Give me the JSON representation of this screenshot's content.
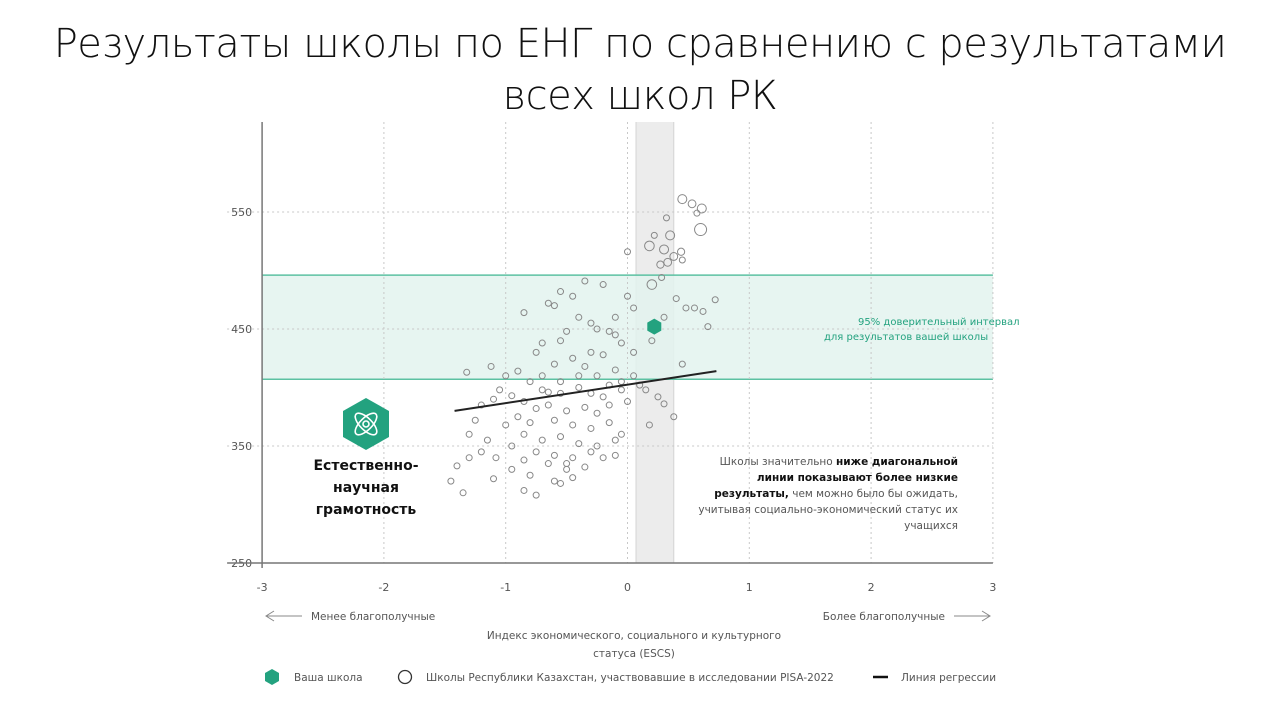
{
  "title_line1": "Результаты школы по ЕНГ по сравнению с результатами",
  "title_line2": "всех школ РК",
  "chart_data": {
    "type": "scatter",
    "xlabel": "Индекс экономического, социального и культурного статуса (ESCS)",
    "xlabel_line1": "Индекс экономического, социального и культурного",
    "xlabel_line2": "статуса (ESCS)",
    "ylabel": "",
    "xlim": [
      -3,
      3
    ],
    "ylim": [
      250,
      625
    ],
    "xticks": [
      "-3",
      "-2",
      "-1",
      "0",
      "1",
      "2",
      "3"
    ],
    "yticks": [
      "250",
      "350",
      "450",
      "550"
    ],
    "grid": true,
    "left_arrow_label": "Менее благополучные",
    "right_arrow_label": "Более благополучные",
    "confidence_band": {
      "low": 407,
      "high": 496,
      "label_line1": "95% доверительный интервал",
      "label_line2": "для результатов вашей школы"
    },
    "school_escs_band": [
      0.07,
      0.38
    ],
    "your_school": {
      "x": 0.22,
      "y": 452
    },
    "regression": {
      "x": [
        -1.42,
        0.73
      ],
      "y": [
        380,
        414
      ]
    },
    "subject_line1": "Естественно-",
    "subject_line2": "научная",
    "subject_line3": "грамотность",
    "note": {
      "l1a": "Школы значительно ",
      "l1b": "ниже диагональной",
      "l2": "линии показывают более низкие",
      "l3a": "результаты,",
      "l3b": " чем можно было бы ожидать,",
      "l4": "учитывая социально-экономический статус их",
      "l5": "учащихся"
    },
    "legend": {
      "your_school": "Ваша школа",
      "schools": "Школы Республики Казахстан, участвовавшие в исследовании PISA-2022",
      "regression": "Линия регрессии"
    },
    "colors": {
      "accent": "#23a27f",
      "band": "#e3f3ee",
      "grey_band": "#ececec"
    },
    "points": [
      [
        0.45,
        561,
        1.5
      ],
      [
        0.53,
        557,
        1.3
      ],
      [
        0.61,
        553,
        1.5
      ],
      [
        0.57,
        549,
        1
      ],
      [
        0.6,
        535,
        2
      ],
      [
        0.32,
        545,
        1
      ],
      [
        0.22,
        530,
        1
      ],
      [
        0.35,
        530,
        1.5
      ],
      [
        0.18,
        521,
        1.6
      ],
      [
        0.3,
        518,
        1.5
      ],
      [
        0.27,
        505,
        1.2
      ],
      [
        0.38,
        512,
        1.3
      ],
      [
        0.44,
        516,
        1.2
      ],
      [
        0.33,
        507,
        1.3
      ],
      [
        0.45,
        509,
        1
      ],
      [
        0.2,
        488,
        1.6
      ],
      [
        0.28,
        494,
        1
      ],
      [
        0.0,
        516,
        1
      ],
      [
        0.4,
        476,
        1
      ],
      [
        0.48,
        468,
        1
      ],
      [
        0.62,
        465,
        1
      ],
      [
        0.72,
        475,
        1
      ],
      [
        0.55,
        468,
        1
      ],
      [
        0.66,
        452,
        1
      ],
      [
        0.3,
        460,
        1
      ],
      [
        0.2,
        440,
        1
      ],
      [
        0.45,
        420,
        1
      ],
      [
        0.38,
        375,
        1
      ],
      [
        0.18,
        368,
        1
      ],
      [
        0.05,
        430,
        1
      ],
      [
        -0.05,
        438,
        1
      ],
      [
        -0.1,
        445,
        1
      ],
      [
        -0.35,
        491,
        1
      ],
      [
        -0.45,
        478,
        1
      ],
      [
        -0.55,
        482,
        1
      ],
      [
        -0.2,
        488,
        1
      ],
      [
        -0.6,
        470,
        1
      ],
      [
        -0.65,
        472,
        1
      ],
      [
        -0.85,
        464,
        1
      ],
      [
        -0.4,
        460,
        1
      ],
      [
        -0.3,
        455,
        1
      ],
      [
        -0.25,
        450,
        1
      ],
      [
        -0.5,
        448,
        1
      ],
      [
        -0.55,
        440,
        1
      ],
      [
        -0.7,
        438,
        1
      ],
      [
        -0.75,
        430,
        1
      ],
      [
        -0.1,
        460,
        1
      ],
      [
        -0.15,
        448,
        1
      ],
      [
        0.0,
        478,
        1
      ],
      [
        0.05,
        468,
        1
      ],
      [
        -0.6,
        420,
        1
      ],
      [
        -0.45,
        425,
        1
      ],
      [
        -0.3,
        430,
        1
      ],
      [
        -0.2,
        428,
        1
      ],
      [
        -0.1,
        415,
        1
      ],
      [
        0.05,
        410,
        1
      ],
      [
        -0.05,
        405,
        1
      ],
      [
        -0.9,
        414,
        1
      ],
      [
        -1.0,
        410,
        1
      ],
      [
        -1.12,
        418,
        1
      ],
      [
        -1.32,
        413,
        1
      ],
      [
        -0.8,
        405,
        1
      ],
      [
        -0.7,
        398,
        1
      ],
      [
        -0.55,
        395,
        1
      ],
      [
        -0.4,
        400,
        1
      ],
      [
        -0.3,
        395,
        1
      ],
      [
        -0.2,
        392,
        1
      ],
      [
        -0.05,
        398,
        1
      ],
      [
        0.1,
        402,
        1
      ],
      [
        -1.05,
        398,
        1
      ],
      [
        -0.95,
        393,
        1
      ],
      [
        -0.85,
        388,
        1
      ],
      [
        -0.75,
        382,
        1
      ],
      [
        -0.65,
        385,
        1
      ],
      [
        -0.5,
        380,
        1
      ],
      [
        -0.35,
        383,
        1
      ],
      [
        -0.25,
        378,
        1
      ],
      [
        -0.15,
        385,
        1
      ],
      [
        0.0,
        388,
        1
      ],
      [
        -1.2,
        385,
        1
      ],
      [
        -1.1,
        390,
        1
      ],
      [
        -0.9,
        375,
        1
      ],
      [
        -0.8,
        370,
        1
      ],
      [
        -0.6,
        372,
        1
      ],
      [
        -0.45,
        368,
        1
      ],
      [
        -0.3,
        365,
        1
      ],
      [
        -0.15,
        370,
        1
      ],
      [
        -0.05,
        360,
        1
      ],
      [
        -1.25,
        372,
        1
      ],
      [
        -1.0,
        368,
        1
      ],
      [
        -0.85,
        360,
        1
      ],
      [
        -0.7,
        355,
        1
      ],
      [
        -0.55,
        358,
        1
      ],
      [
        -0.4,
        352,
        1
      ],
      [
        -0.25,
        350,
        1
      ],
      [
        -0.1,
        355,
        1
      ],
      [
        -1.3,
        360,
        1
      ],
      [
        -1.15,
        355,
        1
      ],
      [
        -0.95,
        350,
        1
      ],
      [
        -0.75,
        345,
        1
      ],
      [
        -0.6,
        342,
        1
      ],
      [
        -0.45,
        340,
        1
      ],
      [
        -0.3,
        345,
        1
      ],
      [
        -0.1,
        342,
        1
      ],
      [
        -1.3,
        340,
        1
      ],
      [
        -1.2,
        345,
        1
      ],
      [
        -0.85,
        338,
        1
      ],
      [
        -0.65,
        335,
        1
      ],
      [
        -0.5,
        330,
        1
      ],
      [
        -0.35,
        332,
        1
      ],
      [
        -1.4,
        333,
        1
      ],
      [
        -1.08,
        340,
        1
      ],
      [
        -0.95,
        330,
        1
      ],
      [
        -0.8,
        325,
        1
      ],
      [
        -0.6,
        320,
        1
      ],
      [
        -0.45,
        323,
        1
      ],
      [
        -0.55,
        318,
        1
      ],
      [
        -1.45,
        320,
        1
      ],
      [
        -1.35,
        310,
        1
      ],
      [
        -1.1,
        322,
        1
      ],
      [
        -0.85,
        312,
        1
      ],
      [
        -0.75,
        308,
        1
      ],
      [
        -0.5,
        335,
        1
      ],
      [
        -0.2,
        340,
        1
      ],
      [
        -0.65,
        396,
        1
      ],
      [
        -0.4,
        410,
        1
      ],
      [
        -0.55,
        405,
        1
      ],
      [
        -0.25,
        410,
        1
      ],
      [
        -0.15,
        402,
        1
      ],
      [
        -0.7,
        410,
        1
      ],
      [
        -0.35,
        418,
        1
      ],
      [
        0.15,
        398,
        1
      ],
      [
        0.25,
        392,
        1
      ],
      [
        0.3,
        386,
        1
      ]
    ]
  }
}
